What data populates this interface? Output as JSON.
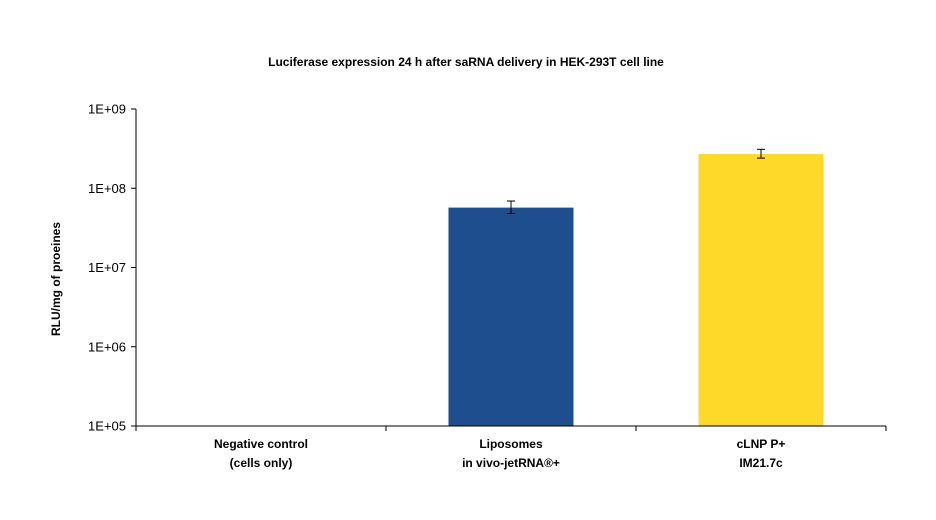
{
  "chart_data": {
    "type": "bar",
    "title": "Luciferase expression 24 h after saRNA delivery in HEK-293T cell line",
    "xlabel": "",
    "ylabel": "RLU/mg of proeines",
    "yscale": "log",
    "ylim": [
      100000,
      1000000000
    ],
    "yticks": [
      {
        "value": 100000,
        "label": "1E+05"
      },
      {
        "value": 1000000,
        "label": "1E+06"
      },
      {
        "value": 10000000,
        "label": "1E+07"
      },
      {
        "value": 100000000,
        "label": "1E+08"
      },
      {
        "value": 1000000000,
        "label": "1E+09"
      }
    ],
    "categories": [
      {
        "line1": "Negative control",
        "line2": "(cells only)"
      },
      {
        "line1": "Liposomes",
        "line2": "in vivo-jetRNA®+"
      },
      {
        "line1": "cLNP P+",
        "line2": "IM21.7c"
      }
    ],
    "values": [
      null,
      57000000,
      270000000
    ],
    "error": [
      null,
      {
        "low": 48000000,
        "high": 69000000
      },
      {
        "low": 240000000,
        "high": 310000000
      }
    ],
    "colors": [
      null,
      "#1F4E8F",
      "#FFD92A"
    ],
    "grid": false,
    "legend": "none"
  }
}
